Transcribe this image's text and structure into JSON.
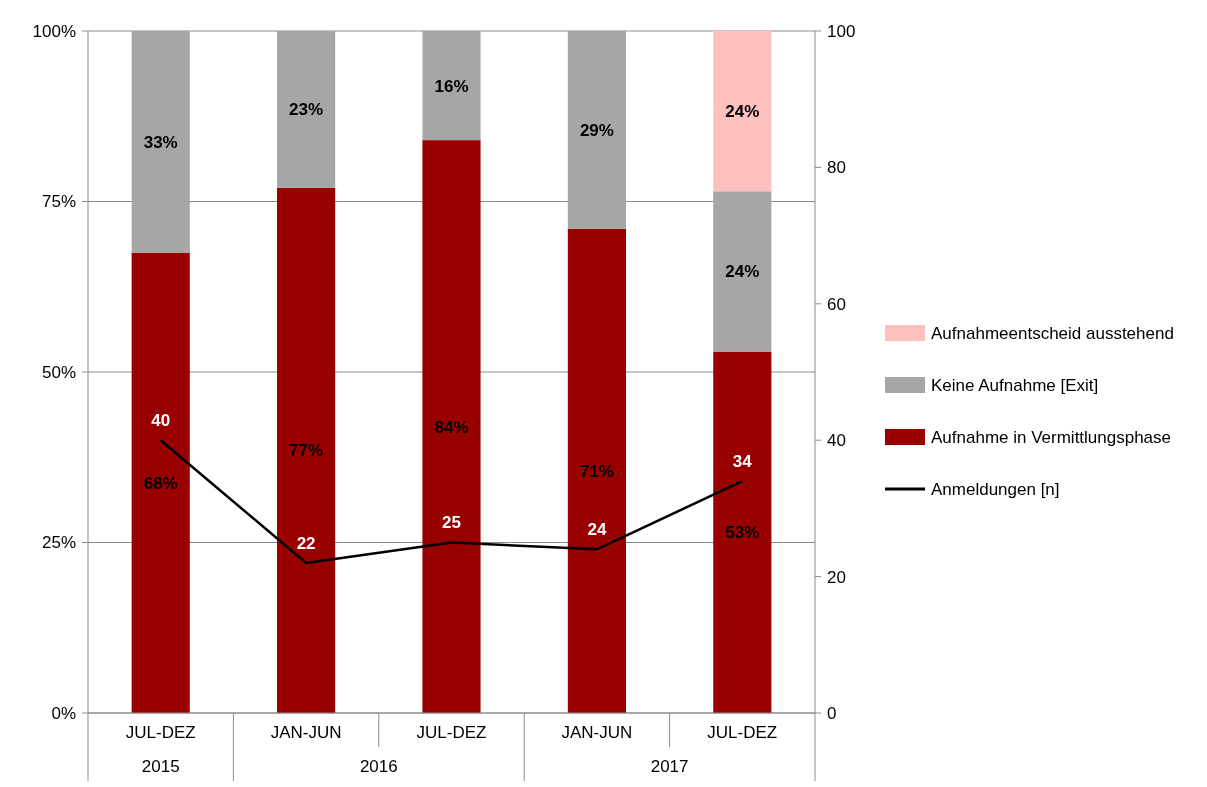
{
  "chart_data": {
    "type": "bar",
    "stacked": true,
    "categories": [
      "JUL-DEZ",
      "JAN-JUN",
      "JUL-DEZ",
      "JAN-JUN",
      "JUL-DEZ"
    ],
    "series": [
      {
        "name": "Aufnahme in Vermittlungsphase",
        "color": "#990000",
        "values": [
          67.5,
          77,
          84,
          71,
          53
        ],
        "value_labels": [
          "68%",
          "77%",
          "84%",
          "71%",
          "53%"
        ]
      },
      {
        "name": "Keine Aufnahme [Exit]",
        "color": "#a6a6a6",
        "values": [
          32.5,
          23,
          16,
          29,
          23.5
        ],
        "value_labels": [
          "33%",
          "23%",
          "16%",
          "29%",
          "24%"
        ]
      },
      {
        "name": "Aufnahmeentscheid ausstehend",
        "color": "#ffc0c0",
        "values": [
          null,
          null,
          null,
          null,
          23.5
        ],
        "value_labels": [
          null,
          null,
          null,
          null,
          "24%"
        ]
      },
      {
        "name": "Anmeldungen [n]",
        "type": "line",
        "axis": "y2",
        "color": "#000000",
        "values": [
          40,
          22,
          25,
          24,
          34
        ],
        "value_labels": [
          "40",
          "22",
          "25",
          "24",
          "34"
        ]
      }
    ],
    "ylim": [
      0,
      100
    ],
    "yticks": [
      {
        "value": 0,
        "label": "0%"
      },
      {
        "value": 25,
        "label": "25%"
      },
      {
        "value": 50,
        "label": "50%"
      },
      {
        "value": 75,
        "label": "75%"
      },
      {
        "value": 100,
        "label": "100%"
      }
    ],
    "y2lim": [
      0,
      100
    ],
    "y2ticks": [
      0,
      20,
      40,
      60,
      80,
      100
    ],
    "grid": "y",
    "legend": "right",
    "marker": "none",
    "annotations": [
      "2015",
      "2016",
      "2017"
    ]
  }
}
